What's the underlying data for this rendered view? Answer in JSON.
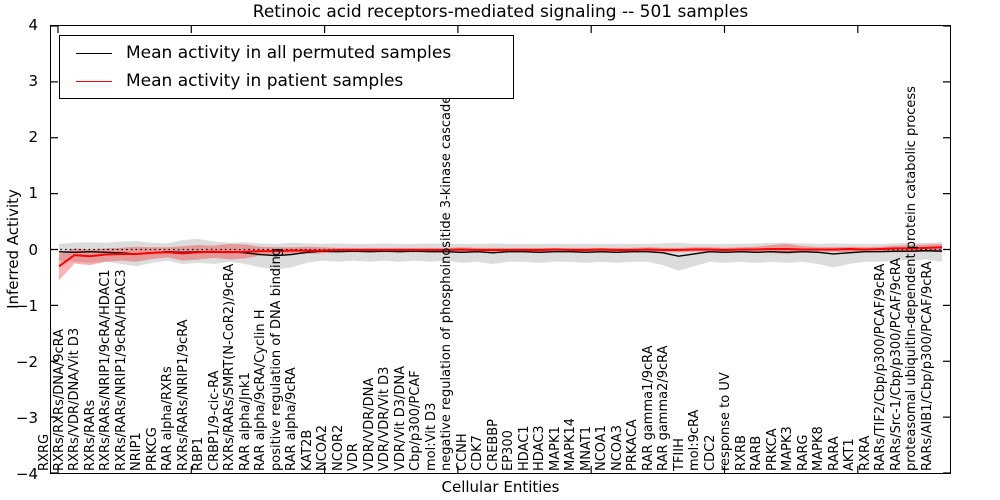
{
  "title": "Retinoic acid receptors-mediated signaling -- 501 samples",
  "axes": {
    "xlabel": "Cellular Entities",
    "ylabel": "Inferred Activity",
    "yticks": [
      "4",
      "3",
      "2",
      "1",
      "0",
      "−1",
      "−2",
      "−3",
      "−4"
    ]
  },
  "legend": {
    "items": [
      {
        "label": "Mean activity in all permuted samples",
        "color": "#000000"
      },
      {
        "label": "Mean activity in patient samples",
        "color": "#ff0000"
      }
    ]
  },
  "chart_data": {
    "type": "line",
    "title": "Retinoic acid receptors-mediated signaling -- 501 samples",
    "xlabel": "Cellular Entities",
    "ylabel": "Inferred Activity",
    "ylim": [
      -4,
      4
    ],
    "grid": false,
    "legend_position": "upper left",
    "zero_line": true,
    "categories": [
      "RXRG",
      "RXRs/RXRs/DNA/9cRA",
      "RXRs/VDR/DNA/Vit D3",
      "RXRs/RARs",
      "RXRs/RARs/NRIP1/9cRA/HDAC1",
      "RXRs/RARs/NRIP1/9cRA/HDAC3",
      "NRIP1",
      "PRKCG",
      "RAR alpha/RXRs",
      "RXRs/RARs/NRIP1/9cRA",
      "RBP1",
      "CRBP1/9-cic-RA",
      "RXRs/RARs/SMRT(N-CoR2)/9cRA",
      "RAR alpha/Jnk1",
      "RAR alpha/9cRA/Cyclin H",
      "positive regulation of DNA binding",
      "RAR alpha/9cRA",
      "KAT2B",
      "NCOA2",
      "NCOR2",
      "VDR",
      "VDR/VDR/DNA",
      "VDR/VDR/Vit D3",
      "VDR/Vit D3/DNA",
      "Cbp/p300/PCAF",
      "mol:Vit D3",
      "negative regulation of phosphoinositide 3-kinase cascade",
      "CCNH",
      "CDK7",
      "CREBBP",
      "EP300",
      "HDAC1",
      "HDAC3",
      "MAPK1",
      "MAPK14",
      "MNAT1",
      "NCOA1",
      "NCOA3",
      "PRKACA",
      "RAR gamma1/9cRA",
      "RAR gamma2/9cRA",
      "TFIIH",
      "mol:9cRA",
      "CDC2",
      "response to UV",
      "RXRB",
      "RARB",
      "PRKCA",
      "MAPK3",
      "RARG",
      "MAPK8",
      "RARA",
      "AKT1",
      "RXRA",
      "RARs/TIF2/Cbp/p300/PCAF/9cRA",
      "RARs/Src-1/Cbp/p300/PCAF/9cRA",
      "proteasomal ubiquitin-dependent protein catabolic process",
      "RARs/AIB1/Cbp/p300/PCAF/9cRA"
    ],
    "series": [
      {
        "name": "Mean activity in all permuted samples",
        "color": "#000000",
        "band_color": "rgba(128,128,128,0.28)",
        "values": [
          -0.04,
          -0.05,
          -0.04,
          -0.05,
          -0.06,
          -0.08,
          -0.06,
          -0.04,
          -0.05,
          -0.04,
          -0.05,
          -0.04,
          -0.06,
          -0.09,
          -0.11,
          -0.09,
          -0.05,
          -0.03,
          -0.04,
          -0.03,
          -0.04,
          -0.03,
          -0.04,
          -0.03,
          -0.04,
          -0.04,
          -0.05,
          -0.04,
          -0.06,
          -0.04,
          -0.04,
          -0.05,
          -0.04,
          -0.04,
          -0.05,
          -0.04,
          -0.05,
          -0.04,
          -0.04,
          -0.06,
          -0.12,
          -0.08,
          -0.04,
          -0.05,
          -0.04,
          -0.05,
          -0.04,
          -0.05,
          -0.04,
          -0.05,
          -0.08,
          -0.06,
          -0.04,
          -0.04,
          -0.03,
          -0.03,
          -0.02,
          -0.03
        ],
        "band_upper": [
          0.1,
          0.12,
          0.13,
          0.12,
          0.14,
          0.15,
          0.12,
          0.11,
          0.17,
          0.19,
          0.14,
          0.12,
          0.13,
          0.11,
          0.1,
          0.12,
          0.11,
          0.1,
          0.11,
          0.1,
          0.1,
          0.11,
          0.1,
          0.1,
          0.11,
          0.1,
          0.1,
          0.1,
          0.11,
          0.1,
          0.1,
          0.1,
          0.1,
          0.1,
          0.1,
          0.1,
          0.1,
          0.1,
          0.1,
          0.11,
          0.12,
          0.1,
          0.1,
          0.1,
          0.1,
          0.11,
          0.12,
          0.12,
          0.11,
          0.1,
          0.11,
          0.1,
          0.1,
          0.1,
          0.11,
          0.12,
          0.12,
          0.13
        ],
        "band_lower": [
          -0.2,
          -0.22,
          -0.24,
          -0.22,
          -0.26,
          -0.3,
          -0.24,
          -0.2,
          -0.26,
          -0.24,
          -0.26,
          -0.22,
          -0.26,
          -0.32,
          -0.36,
          -0.32,
          -0.24,
          -0.2,
          -0.22,
          -0.2,
          -0.22,
          -0.2,
          -0.22,
          -0.2,
          -0.22,
          -0.2,
          -0.24,
          -0.22,
          -0.26,
          -0.22,
          -0.22,
          -0.24,
          -0.22,
          -0.22,
          -0.24,
          -0.22,
          -0.24,
          -0.22,
          -0.22,
          -0.28,
          -0.38,
          -0.3,
          -0.22,
          -0.24,
          -0.22,
          -0.24,
          -0.22,
          -0.24,
          -0.22,
          -0.26,
          -0.32,
          -0.26,
          -0.22,
          -0.22,
          -0.2,
          -0.19,
          -0.18,
          -0.22
        ]
      },
      {
        "name": "Mean activity in patient samples",
        "color": "#ff0000",
        "band_color": "rgba(255,0,0,0.30)",
        "values": [
          -0.3,
          -0.1,
          -0.12,
          -0.09,
          -0.08,
          -0.08,
          -0.06,
          -0.05,
          -0.07,
          -0.05,
          -0.04,
          -0.05,
          -0.04,
          -0.03,
          -0.03,
          -0.02,
          -0.02,
          -0.02,
          -0.01,
          -0.01,
          -0.01,
          -0.01,
          -0.01,
          -0.01,
          -0.01,
          -0.01,
          0.0,
          -0.01,
          -0.01,
          -0.01,
          -0.01,
          -0.01,
          0.0,
          -0.01,
          -0.01,
          0.0,
          -0.01,
          -0.01,
          0.0,
          -0.01,
          -0.01,
          0.0,
          0.0,
          -0.01,
          0.0,
          0.0,
          0.01,
          0.01,
          0.0,
          0.0,
          0.0,
          0.01,
          0.0,
          0.01,
          0.02,
          0.02,
          0.03,
          0.04
        ],
        "band_upper": [
          -0.08,
          0.02,
          0.0,
          0.02,
          0.03,
          0.05,
          0.04,
          0.04,
          0.06,
          0.08,
          0.07,
          0.1,
          0.09,
          0.05,
          0.04,
          0.04,
          0.05,
          0.04,
          0.03,
          0.03,
          0.03,
          0.03,
          0.03,
          0.03,
          0.03,
          0.03,
          0.04,
          0.03,
          0.03,
          0.03,
          0.03,
          0.03,
          0.03,
          0.03,
          0.03,
          0.03,
          0.03,
          0.03,
          0.04,
          0.03,
          0.03,
          0.04,
          0.04,
          0.03,
          0.04,
          0.05,
          0.08,
          0.1,
          0.06,
          0.04,
          0.04,
          0.05,
          0.04,
          0.05,
          0.07,
          0.08,
          0.09,
          0.1
        ],
        "band_lower": [
          -0.55,
          -0.25,
          -0.28,
          -0.22,
          -0.2,
          -0.22,
          -0.17,
          -0.14,
          -0.2,
          -0.18,
          -0.15,
          -0.18,
          -0.16,
          -0.11,
          -0.09,
          -0.08,
          -0.08,
          -0.07,
          -0.05,
          -0.05,
          -0.05,
          -0.05,
          -0.05,
          -0.05,
          -0.05,
          -0.05,
          -0.04,
          -0.05,
          -0.05,
          -0.05,
          -0.05,
          -0.05,
          -0.04,
          -0.05,
          -0.05,
          -0.04,
          -0.05,
          -0.05,
          -0.04,
          -0.05,
          -0.05,
          -0.04,
          -0.04,
          -0.05,
          -0.04,
          -0.04,
          -0.06,
          -0.08,
          -0.05,
          -0.04,
          -0.04,
          -0.05,
          -0.04,
          -0.04,
          -0.05,
          -0.05,
          -0.04,
          -0.05
        ]
      }
    ]
  }
}
